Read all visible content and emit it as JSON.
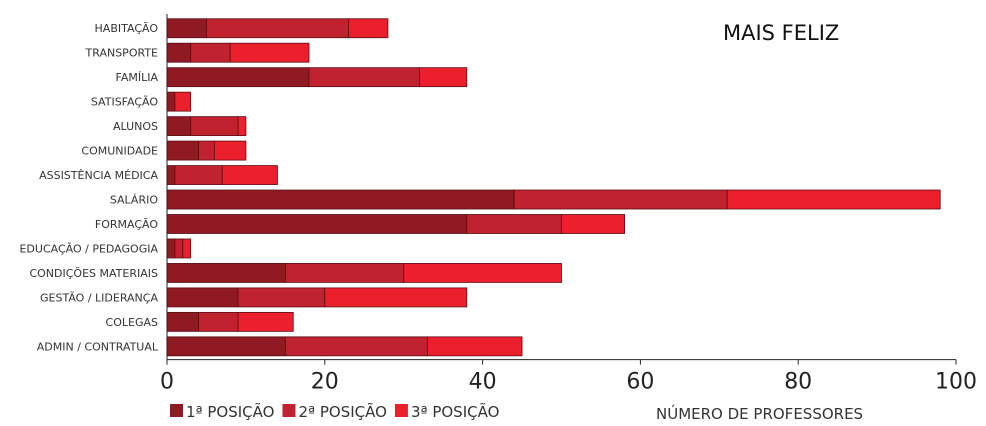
{
  "chart_data": {
    "type": "bar",
    "orientation": "horizontal",
    "stacked": true,
    "title": "MAIS FELIZ",
    "xlabel": "NÚMERO DE PROFESSORES",
    "ylabel": "",
    "xlim": [
      0,
      100
    ],
    "xticks": [
      0,
      20,
      40,
      60,
      80,
      100
    ],
    "grid": false,
    "legend_position": "bottom-left",
    "categories": [
      "HABITAÇÃO",
      "TRANSPORTE",
      "FAMÍLIA",
      "SATISFAÇÃO",
      "ALUNOS",
      "COMUNIDADE",
      "ASSISTÊNCIA MÉDICA",
      "SALÁRIO",
      "FORMAÇÃO",
      "EDUCAÇÃO / PEDAGOGIA",
      "CONDIÇÕES MATERIAIS",
      "GESTÃO / LIDERANÇA",
      "COLEGAS",
      "ADMIN / CONTRATUAL"
    ],
    "series": [
      {
        "name": "1ª POSIÇÃO",
        "color": "#8f1a24",
        "values": [
          5,
          3,
          18,
          1,
          3,
          4,
          1,
          44,
          38,
          1,
          15,
          9,
          4,
          15
        ]
      },
      {
        "name": "2ª POSIÇÃO",
        "color": "#c0232f",
        "values": [
          18,
          5,
          14,
          0,
          6,
          2,
          6,
          27,
          12,
          1,
          15,
          11,
          5,
          18
        ]
      },
      {
        "name": "3ª POSIÇÃO",
        "color": "#ec1f2c",
        "values": [
          5,
          10,
          6,
          2,
          1,
          4,
          7,
          27,
          8,
          1,
          20,
          18,
          7,
          12
        ]
      }
    ]
  }
}
